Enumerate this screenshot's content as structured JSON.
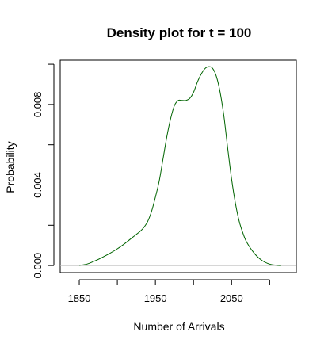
{
  "chart_data": {
    "type": "line",
    "title": "Density plot for t = 100",
    "xlabel": "Number of Arrivals",
    "ylabel": "Probability",
    "xlim": [
      1825,
      2135
    ],
    "ylim": [
      -0.00035,
      0.0102
    ],
    "x_ticks": [
      1850,
      1900,
      1950,
      2000,
      2050,
      2100
    ],
    "x_tick_labels": [
      "1850",
      "",
      "1950",
      "",
      "2050",
      ""
    ],
    "y_ticks": [
      0.0,
      0.002,
      0.004,
      0.006,
      0.008,
      0.01
    ],
    "y_tick_labels": [
      "0.000",
      "",
      "0.004",
      "",
      "0.008",
      ""
    ],
    "baseline_y": 0,
    "grid": false,
    "series": [
      {
        "color": "#006400",
        "x": [
          1850,
          1860,
          1870,
          1880,
          1890,
          1900,
          1910,
          1920,
          1930,
          1935,
          1940,
          1945,
          1950,
          1955,
          1960,
          1965,
          1970,
          1975,
          1980,
          1985,
          1990,
          1995,
          2000,
          2005,
          2010,
          2015,
          2020,
          2025,
          2030,
          2035,
          2040,
          2045,
          2050,
          2055,
          2060,
          2065,
          2070,
          2080,
          2090,
          2100,
          2110,
          2115
        ],
        "y": [
          1e-05,
          7e-05,
          0.00022,
          0.0004,
          0.0006,
          0.00083,
          0.0011,
          0.0014,
          0.0017,
          0.0019,
          0.0022,
          0.0027,
          0.0034,
          0.0042,
          0.0053,
          0.0064,
          0.0073,
          0.00795,
          0.0082,
          0.0082,
          0.0082,
          0.0083,
          0.0086,
          0.0091,
          0.0095,
          0.00978,
          0.00988,
          0.0098,
          0.0094,
          0.0086,
          0.0074,
          0.0058,
          0.0043,
          0.0031,
          0.0022,
          0.0016,
          0.00115,
          0.0006,
          0.00025,
          7e-05,
          1e-05,
          0.0
        ]
      }
    ]
  }
}
